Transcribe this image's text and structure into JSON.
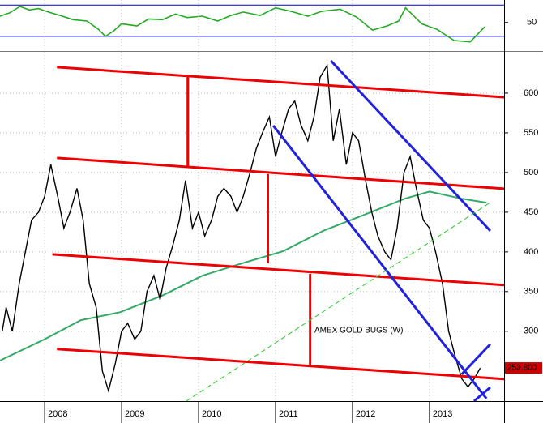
{
  "chart_data": [
    {
      "type": "line",
      "color": "#22aa22",
      "level_color": "#0000cc",
      "xlim": [
        2007.42,
        2013.97
      ],
      "ylim": [
        10,
        80
      ],
      "yticks": [
        50
      ],
      "levels": [
        30,
        75
      ],
      "x": [
        2007.42,
        2007.55,
        2007.68,
        2007.8,
        2007.92,
        2008.05,
        2008.2,
        2008.37,
        2008.55,
        2008.7,
        2008.79,
        2008.9,
        2009.0,
        2009.2,
        2009.35,
        2009.53,
        2009.7,
        2009.85,
        2010.05,
        2010.25,
        2010.42,
        2010.58,
        2010.8,
        2011.0,
        2011.2,
        2011.42,
        2011.6,
        2011.84,
        2012.05,
        2012.26,
        2012.45,
        2012.6,
        2012.69,
        2012.9,
        2013.1,
        2013.32,
        2013.53,
        2013.72
      ],
      "values": [
        59,
        64,
        73,
        68,
        70,
        65,
        60,
        54,
        52,
        40,
        30,
        38,
        48,
        45,
        55,
        54,
        62,
        57,
        59,
        52,
        60,
        65,
        60,
        71,
        66,
        59,
        66,
        69,
        58,
        39,
        45,
        52,
        71,
        48,
        40,
        24,
        22,
        44
      ]
    },
    {
      "type": "ohlc",
      "color": "#000000",
      "annotation": "AMEX GOLD BUGS (W)",
      "annotation_color": "#2222cc",
      "last_label": "253.800",
      "last_label_color": "#cc0000",
      "xlim": [
        2007.42,
        2013.97
      ],
      "xticks": [
        2008,
        2009,
        2010,
        2011,
        2012,
        2013
      ],
      "ylim": [
        212,
        651
      ],
      "yticks": [
        300,
        350,
        400,
        450,
        500,
        550,
        600
      ],
      "grid": true,
      "x": [
        2007.45,
        2007.5,
        2007.58,
        2007.67,
        2007.75,
        2007.83,
        2007.92,
        2008.0,
        2008.08,
        2008.17,
        2008.25,
        2008.33,
        2008.42,
        2008.5,
        2008.58,
        2008.67,
        2008.75,
        2008.83,
        2008.92,
        2009.0,
        2009.08,
        2009.17,
        2009.25,
        2009.33,
        2009.42,
        2009.5,
        2009.58,
        2009.67,
        2009.75,
        2009.83,
        2009.92,
        2010.0,
        2010.08,
        2010.17,
        2010.25,
        2010.33,
        2010.42,
        2010.5,
        2010.58,
        2010.67,
        2010.75,
        2010.83,
        2010.92,
        2011.0,
        2011.08,
        2011.17,
        2011.25,
        2011.33,
        2011.42,
        2011.5,
        2011.58,
        2011.67,
        2011.75,
        2011.83,
        2011.92,
        2012.0,
        2012.08,
        2012.17,
        2012.25,
        2012.33,
        2012.42,
        2012.5,
        2012.58,
        2012.67,
        2012.75,
        2012.83,
        2012.92,
        2013.0,
        2013.08,
        2013.17,
        2013.25,
        2013.33,
        2013.42,
        2013.5,
        2013.58,
        2013.66
      ],
      "values": [
        300,
        330,
        300,
        360,
        400,
        440,
        450,
        470,
        510,
        470,
        430,
        450,
        480,
        440,
        360,
        330,
        250,
        225,
        260,
        300,
        310,
        290,
        300,
        350,
        370,
        340,
        380,
        410,
        440,
        490,
        430,
        450,
        420,
        440,
        470,
        480,
        470,
        450,
        470,
        500,
        530,
        550,
        570,
        520,
        550,
        580,
        590,
        560,
        540,
        570,
        620,
        635,
        540,
        580,
        510,
        550,
        540,
        490,
        450,
        420,
        400,
        390,
        430,
        500,
        520,
        480,
        440,
        430,
        400,
        360,
        300,
        270,
        240,
        230,
        240,
        253.8
      ],
      "moving_average": {
        "color": "#33aa66",
        "x": [
          2007.42,
          2008.0,
          2008.47,
          2008.98,
          2009.53,
          2010.05,
          2010.58,
          2011.1,
          2011.63,
          2012.16,
          2012.68,
          2013.0,
          2013.42,
          2013.74
        ],
        "values": [
          263,
          290,
          314,
          324,
          345,
          370,
          386,
          401,
          427,
          447,
          467,
          476,
          467,
          462
        ]
      },
      "trendlines": [
        {
          "color": "#ee0000",
          "x": [
            2008.16,
            2013.97
          ],
          "y": [
            632.7,
            594.9
          ]
        },
        {
          "color": "#ee0000",
          "x": [
            2008.16,
            2013.97
          ],
          "y": [
            518.4,
            479.6
          ]
        },
        {
          "color": "#ee0000",
          "x": [
            2008.1,
            2013.97
          ],
          "y": [
            396.9,
            358.2
          ]
        },
        {
          "color": "#ee0000",
          "x": [
            2008.16,
            2013.97
          ],
          "y": [
            277.6,
            239.8
          ]
        },
        {
          "color": "#ee0000",
          "x": [
            2009.86,
            2009.86
          ],
          "y": [
            620.4,
            506.1
          ]
        },
        {
          "color": "#ee0000",
          "x": [
            2010.9,
            2010.9
          ],
          "y": [
            498,
            385.7
          ]
        },
        {
          "color": "#ee0000",
          "x": [
            2011.45,
            2011.45
          ],
          "y": [
            372.4,
            256.1
          ]
        },
        {
          "color": "#2222dd",
          "x": [
            2011.72,
            2013.79
          ],
          "y": [
            640.8,
            426.5
          ]
        },
        {
          "color": "#2222dd",
          "x": [
            2010.97,
            2013.74
          ],
          "y": [
            559.2,
            215.3
          ]
        },
        {
          "color": "#2222dd",
          "x": [
            2013.42,
            2013.79
          ],
          "y": [
            245.9,
            283.7
          ]
        },
        {
          "color": "#2222dd",
          "x": [
            2013.58,
            2013.79
          ],
          "y": [
            212,
            229.4
          ]
        },
        {
          "color": "#22cc22",
          "x": [
            2009.84,
            2013.79
          ],
          "y": [
            212,
            462.2
          ],
          "dash": true
        }
      ]
    }
  ]
}
